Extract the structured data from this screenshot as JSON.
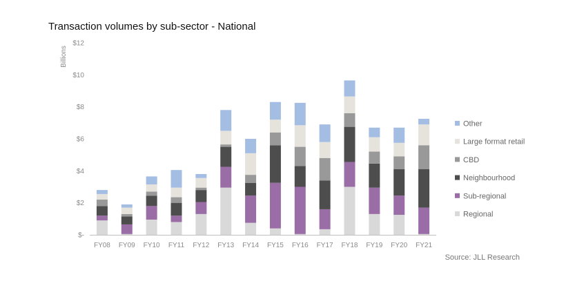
{
  "chart_data": {
    "type": "bar",
    "stacked": true,
    "title": "Transaction volumes by sub-sector - National",
    "xlabel": "",
    "ylabel": "Billions",
    "ylim": [
      0,
      12
    ],
    "yticks": [
      0,
      2,
      4,
      6,
      8,
      10,
      12
    ],
    "ytick_labels": [
      "$-",
      "$2",
      "$4",
      "$6",
      "$8",
      "$10",
      "$12"
    ],
    "categories": [
      "FY08",
      "FY09",
      "FY10",
      "FY11",
      "FY12",
      "FY13",
      "FY14",
      "FY15",
      "FY16",
      "FY17",
      "FY18",
      "FY19",
      "FY20",
      "FY21"
    ],
    "series": [
      {
        "name": "Regional",
        "color": "#d9d9d9",
        "values": [
          0.9,
          0.05,
          0.95,
          0.8,
          1.3,
          2.95,
          0.75,
          0.4,
          0.05,
          0.35,
          3.0,
          1.3,
          1.25,
          0.05
        ]
      },
      {
        "name": "Sub-regional",
        "color": "#9b6da6",
        "values": [
          0.3,
          0.6,
          0.85,
          0.4,
          0.75,
          1.3,
          1.7,
          2.85,
          2.95,
          1.25,
          1.55,
          1.65,
          1.2,
          1.65
        ]
      },
      {
        "name": "Neighbourhood",
        "color": "#4d4d4d",
        "values": [
          0.6,
          0.5,
          0.65,
          0.8,
          0.75,
          1.25,
          0.8,
          2.35,
          1.3,
          1.8,
          2.2,
          1.5,
          1.65,
          2.4
        ]
      },
      {
        "name": "CBD",
        "color": "#999999",
        "values": [
          0.4,
          0.15,
          0.25,
          0.35,
          0.15,
          0.15,
          0.5,
          0.8,
          1.2,
          1.4,
          0.85,
          0.75,
          0.8,
          1.5
        ]
      },
      {
        "name": "Large format retail",
        "color": "#e6e3dc",
        "values": [
          0.35,
          0.4,
          0.45,
          0.6,
          0.6,
          0.85,
          1.35,
          0.8,
          1.35,
          1.0,
          1.05,
          0.9,
          0.85,
          1.3
        ]
      },
      {
        "name": "Other",
        "color": "#a4bde3",
        "values": [
          0.25,
          0.2,
          0.5,
          1.1,
          0.25,
          1.3,
          0.9,
          1.1,
          1.4,
          1.1,
          1.0,
          0.6,
          0.95,
          0.35
        ]
      }
    ],
    "legend": "right",
    "grid": false
  },
  "source": "Source: JLL Research"
}
